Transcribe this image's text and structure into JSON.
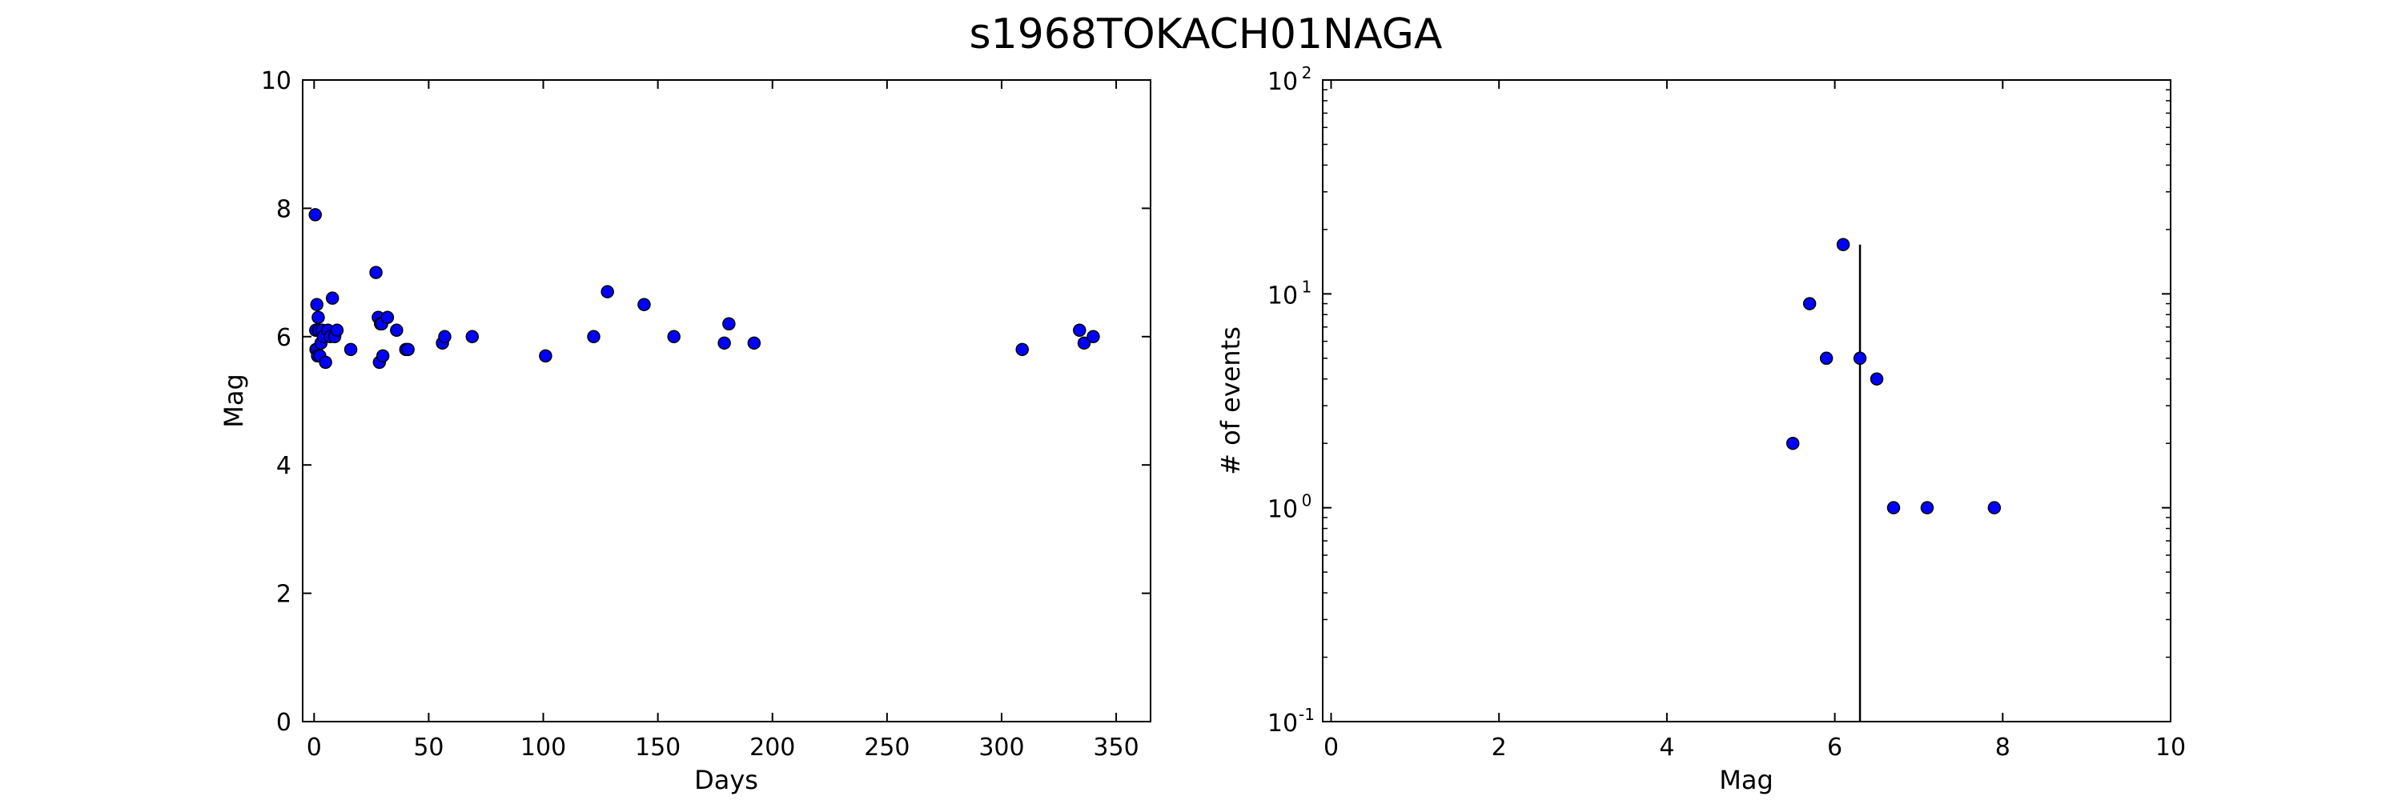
{
  "figure": {
    "title": "s1968TOKACH01NAGA"
  },
  "colors": {
    "marker_fill": "#0000ff",
    "marker_edge": "#000000",
    "axes": "#000000",
    "background": "#ffffff"
  },
  "chart_data": [
    {
      "type": "scatter",
      "title": "",
      "xlabel": "Days",
      "ylabel": "Mag",
      "xlim": [
        -5,
        365
      ],
      "ylim": [
        0,
        10
      ],
      "xscale": "linear",
      "yscale": "linear",
      "grid": false,
      "xticks": [
        0,
        50,
        100,
        150,
        200,
        250,
        300,
        350
      ],
      "xtick_labels": [
        "0",
        "50",
        "100",
        "150",
        "200",
        "250",
        "300",
        "350"
      ],
      "yticks": [
        0,
        2,
        4,
        6,
        8,
        10
      ],
      "ytick_labels": [
        "0",
        "2",
        "4",
        "6",
        "8",
        "10"
      ],
      "series": [
        {
          "x": [
            0.5,
            0.7,
            0.8,
            1.0,
            1.2,
            1.5,
            1.8,
            2.0,
            2.5,
            3.0,
            3.5,
            4.0,
            5.0,
            6.0,
            7.0,
            8.0,
            9.0,
            10.0,
            16.0,
            27.0,
            28.0,
            28.5,
            29.0,
            29.5,
            30.0,
            32.0,
            36.0,
            40.0,
            41.0,
            56.0,
            57.0,
            69.0,
            101.0,
            122.0,
            128.0,
            144.0,
            157.0,
            179.0,
            181.0,
            192.0,
            309.0,
            334.0,
            336.0,
            340.0
          ],
          "y": [
            7.9,
            6.1,
            5.8,
            5.8,
            6.5,
            5.7,
            6.3,
            6.1,
            5.7,
            5.9,
            6.1,
            6.0,
            5.6,
            6.1,
            6.0,
            6.6,
            6.0,
            6.1,
            5.8,
            7.0,
            6.3,
            5.6,
            6.2,
            6.2,
            5.7,
            6.3,
            6.1,
            5.8,
            5.8,
            5.9,
            6.0,
            6.0,
            5.7,
            6.0,
            6.7,
            6.5,
            6.0,
            5.9,
            6.2,
            5.9,
            5.8,
            6.1,
            5.9,
            6.0
          ]
        }
      ]
    },
    {
      "type": "scatter",
      "title": "",
      "xlabel": "Mag",
      "ylabel": "# of events",
      "xlim": [
        -0.1,
        10
      ],
      "ylim": [
        0.1,
        100
      ],
      "xscale": "linear",
      "yscale": "log",
      "grid": false,
      "xticks": [
        0,
        2,
        4,
        6,
        8,
        10
      ],
      "xtick_labels": [
        "0",
        "2",
        "4",
        "6",
        "8",
        "10"
      ],
      "yticks": [
        0.1,
        1,
        10,
        100
      ],
      "ytick_labels": [
        {
          "base": "10",
          "exp": "-1"
        },
        {
          "base": "10",
          "exp": "0"
        },
        {
          "base": "10",
          "exp": "1"
        },
        {
          "base": "10",
          "exp": "2"
        }
      ],
      "series": [
        {
          "x": [
            5.5,
            5.7,
            5.9,
            6.1,
            6.3,
            6.5,
            6.7,
            7.1,
            7.9
          ],
          "y": [
            2,
            9,
            5,
            17,
            5,
            4,
            1,
            1,
            1
          ]
        }
      ],
      "vline": {
        "x": 6.3,
        "y_from": 0.1,
        "y_to": 17
      }
    }
  ]
}
